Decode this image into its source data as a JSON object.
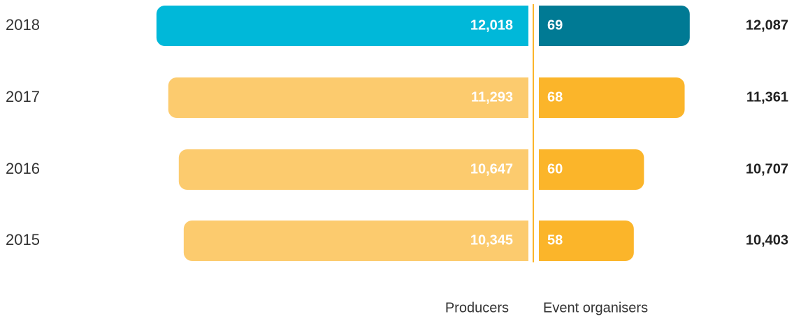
{
  "chart_data": {
    "type": "diverging-bar",
    "categories": [
      "2018",
      "2017",
      "2016",
      "2015"
    ],
    "series": [
      {
        "name": "Producers",
        "colors": [
          "#00b8d9",
          "#fccb6e",
          "#fccb6e",
          "#fccb6e"
        ],
        "values": [
          12018,
          11293,
          10647,
          10345
        ],
        "value_labels": [
          "12,018",
          "11,293",
          "10,647",
          "10,345"
        ]
      },
      {
        "name": "Event organisers",
        "colors": [
          "#007a94",
          "#fbb52a",
          "#fbb52a",
          "#fbb52a"
        ],
        "values": [
          69,
          68,
          60,
          58
        ]
      }
    ],
    "totals": {
      "values": [
        12087,
        11361,
        10707,
        10403
      ],
      "value_labels": [
        "12,087",
        "11,361",
        "10,707",
        "10,403"
      ]
    },
    "divider_color": "#fbb52a"
  }
}
